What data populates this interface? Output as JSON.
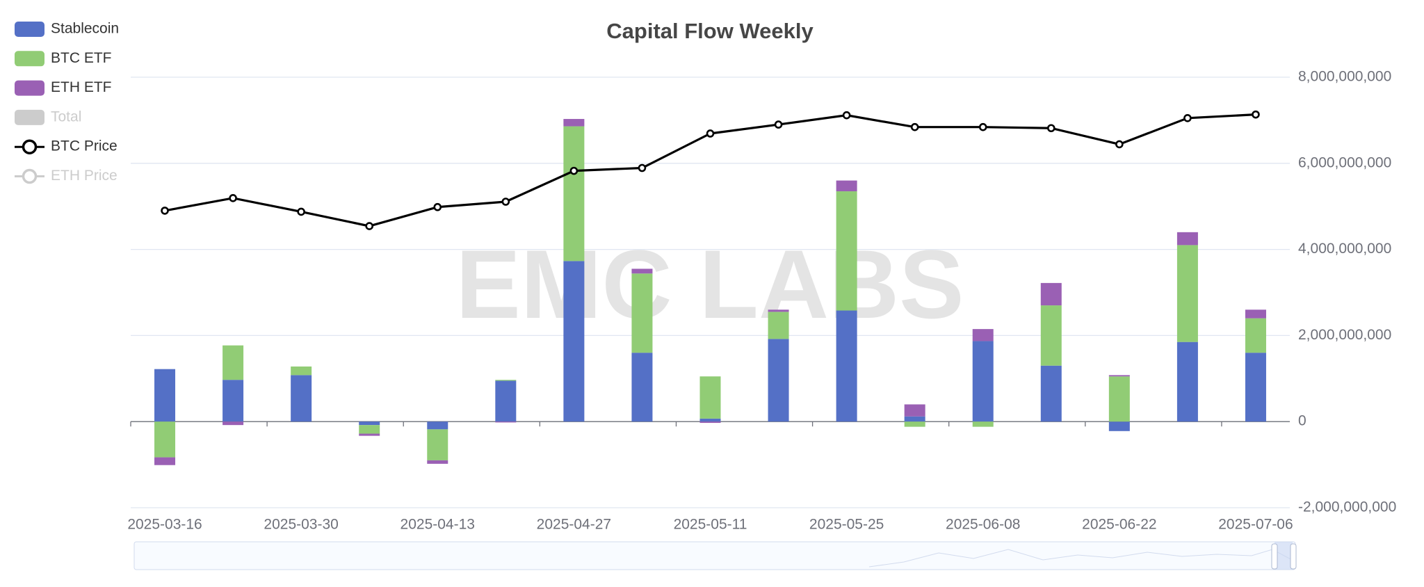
{
  "chart_data": {
    "type": "bar",
    "title": "Capital Flow Weekly",
    "watermark": "EMC LABS",
    "stacked": true,
    "categories": [
      "2025-03-16",
      null,
      "2025-03-30",
      null,
      "2025-04-13",
      null,
      "2025-04-27",
      null,
      "2025-05-11",
      null,
      "2025-05-25",
      null,
      "2025-06-08",
      null,
      "2025-06-22",
      null,
      "2025-07-06"
    ],
    "series": [
      {
        "name": "Stablecoin",
        "color": "#5470c6",
        "type": "bar",
        "values": [
          1220000000,
          970000000,
          1080000000,
          -80000000,
          -180000000,
          950000000,
          3730000000,
          1600000000,
          70000000,
          1920000000,
          2580000000,
          120000000,
          1870000000,
          1300000000,
          -220000000,
          1850000000,
          1600000000
        ]
      },
      {
        "name": "BTC ETF",
        "color": "#91cc75",
        "type": "bar",
        "values": [
          -830000000,
          800000000,
          200000000,
          -200000000,
          -720000000,
          20000000,
          3130000000,
          1840000000,
          980000000,
          630000000,
          2770000000,
          -120000000,
          -120000000,
          1400000000,
          1050000000,
          2250000000,
          800000000
        ]
      },
      {
        "name": "ETH ETF",
        "color": "#9a60b4",
        "type": "bar",
        "values": [
          -180000000,
          -80000000,
          0,
          -50000000,
          -80000000,
          -20000000,
          170000000,
          110000000,
          -30000000,
          50000000,
          250000000,
          280000000,
          280000000,
          520000000,
          30000000,
          300000000,
          200000000
        ]
      },
      {
        "name": "Total",
        "color": "#cccccc",
        "type": "bar",
        "hidden": true
      },
      {
        "name": "BTC Price",
        "color": "#000000",
        "type": "line",
        "axis": "y2",
        "values": [
          82800,
          86300,
          82500,
          78500,
          83800,
          85300,
          93900,
          94700,
          104300,
          106800,
          109400,
          106100,
          106100,
          105800,
          101300,
          108600,
          109600
        ]
      },
      {
        "name": "ETH Price",
        "color": "#cccccc",
        "type": "line",
        "axis": "y2",
        "hidden": true
      }
    ],
    "ylim": [
      -2000000000,
      8000000000
    ],
    "yticks": [
      {
        "value": -2000000000,
        "label": "-2,000,000,000"
      },
      0,
      {
        "value": 2000000000,
        "label": "2,000,000,000"
      },
      {
        "value": 4000000000,
        "label": "4,000,000,000"
      },
      {
        "value": 6000000000,
        "label": "6,000,000,000"
      },
      {
        "value": 8000000000,
        "label": "8,000,000,000"
      }
    ],
    "y2lim": [
      0,
      120000
    ],
    "grid": true,
    "legend": "top-left"
  }
}
